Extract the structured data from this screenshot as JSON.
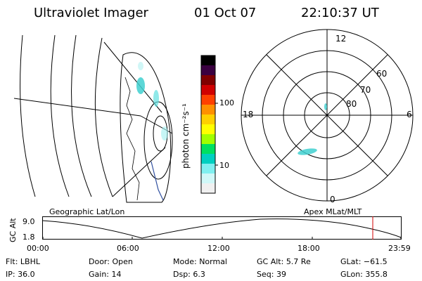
{
  "header": {
    "title": "Ultraviolet Imager",
    "date": "01 Oct 07",
    "time": "22:10:37 UT"
  },
  "colorbar": {
    "label": "photon cm⁻²s⁻¹",
    "ticks": [
      "100",
      "10"
    ],
    "colors": [
      "#000000",
      "#3a0040",
      "#800000",
      "#d00000",
      "#ff4000",
      "#ff9000",
      "#ffd000",
      "#ffff00",
      "#a0ff00",
      "#00e060",
      "#00d0c0",
      "#80f0f0",
      "#d0f8f8",
      "#f0f0f0"
    ]
  },
  "geo_panel": {
    "label": "Geographic Lat/Lon"
  },
  "polar_panel": {
    "label": "Apex MLat/MLT",
    "mlt_labels": {
      "top": "12",
      "bottom": "0",
      "left": "18",
      "right": "6"
    },
    "lat_labels": [
      "60",
      "70",
      "80"
    ]
  },
  "altitude_plot": {
    "ylabel": "GC Alt",
    "yticks": [
      "9.0",
      "1.8"
    ],
    "xticks": [
      "00:00",
      "06:00",
      "12:00",
      "18:00",
      "23:59"
    ],
    "marker_color": "#d00000"
  },
  "info": {
    "row1": [
      {
        "key": "Flt:",
        "value": "LBHL"
      },
      {
        "key": "Door:",
        "value": "Open"
      },
      {
        "key": "Mode:",
        "value": "Normal"
      },
      {
        "key": "GC Alt:",
        "value": "5.7 Re"
      },
      {
        "key": "GLat:",
        "value": "−61.5"
      }
    ],
    "row2": [
      {
        "key": "IP:",
        "value": "36.0"
      },
      {
        "key": "Gain:",
        "value": "14"
      },
      {
        "key": "Dsp:",
        "value": "6.3"
      },
      {
        "key": "Seq:",
        "value": "39"
      },
      {
        "key": "GLon:",
        "value": "355.8"
      }
    ]
  }
}
